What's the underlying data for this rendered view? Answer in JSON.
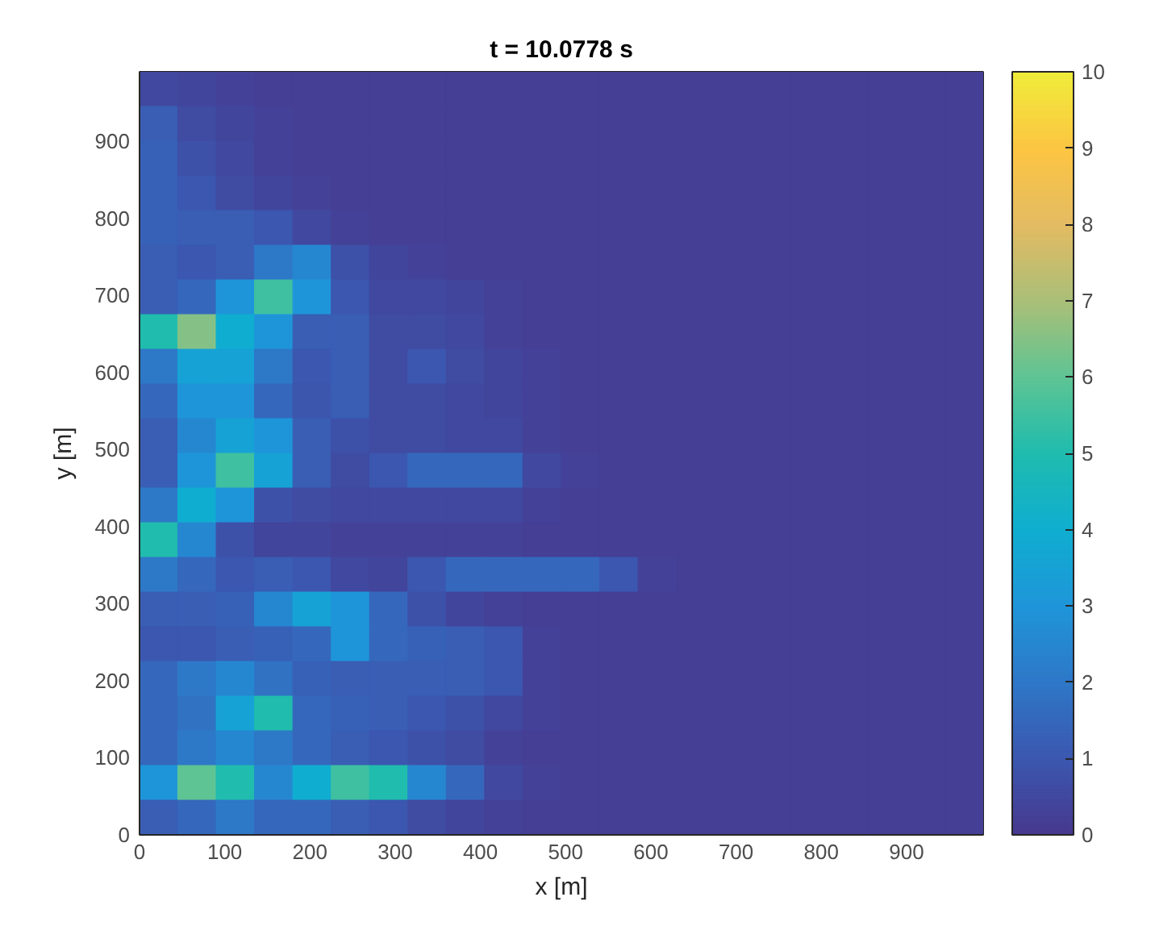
{
  "chart_data": {
    "type": "heatmap",
    "title": "t = 10.0778 s",
    "xlabel": "x [m]",
    "ylabel": "y [m]",
    "xlim": [
      0,
      990
    ],
    "ylim": [
      0,
      990
    ],
    "xticks": [
      0,
      100,
      200,
      300,
      400,
      500,
      600,
      700,
      800,
      900
    ],
    "yticks": [
      0,
      100,
      200,
      300,
      400,
      500,
      600,
      700,
      800,
      900
    ],
    "clim": [
      0,
      10
    ],
    "cticks": [
      0,
      1,
      2,
      3,
      4,
      5,
      6,
      7,
      8,
      9,
      10
    ],
    "cells": [
      [
        0.5,
        0.4,
        0.3,
        0.2,
        0.2,
        0.2,
        0.2,
        0.2,
        0.2,
        0.2,
        0.2,
        0.2,
        0.2,
        0.2,
        0.2,
        0.2,
        0.2,
        0.2,
        0.2,
        0.2,
        0.2,
        0.2
      ],
      [
        1.2,
        0.6,
        0.4,
        0.3,
        0.2,
        0.2,
        0.2,
        0.2,
        0.2,
        0.2,
        0.2,
        0.2,
        0.2,
        0.2,
        0.2,
        0.2,
        0.2,
        0.2,
        0.2,
        0.2,
        0.2,
        0.2
      ],
      [
        1.3,
        0.8,
        0.5,
        0.3,
        0.2,
        0.2,
        0.2,
        0.2,
        0.2,
        0.2,
        0.2,
        0.2,
        0.2,
        0.2,
        0.2,
        0.2,
        0.2,
        0.2,
        0.2,
        0.2,
        0.2,
        0.2
      ],
      [
        1.3,
        1,
        0.6,
        0.4,
        0.3,
        0.2,
        0.2,
        0.2,
        0.2,
        0.2,
        0.2,
        0.2,
        0.2,
        0.2,
        0.2,
        0.2,
        0.2,
        0.2,
        0.2,
        0.2,
        0.2,
        0.2
      ],
      [
        1.3,
        1.2,
        1.2,
        1,
        0.5,
        0.3,
        0.2,
        0.2,
        0.2,
        0.2,
        0.2,
        0.2,
        0.2,
        0.2,
        0.2,
        0.2,
        0.2,
        0.2,
        0.2,
        0.2,
        0.2,
        0.2
      ],
      [
        1.2,
        1,
        1.2,
        2,
        2.5,
        0.8,
        0.4,
        0.3,
        0.2,
        0.2,
        0.2,
        0.2,
        0.2,
        0.2,
        0.2,
        0.2,
        0.2,
        0.2,
        0.2,
        0.2,
        0.2,
        0.2
      ],
      [
        1.2,
        1.5,
        3,
        5.5,
        3,
        1,
        0.5,
        0.5,
        0.4,
        0.3,
        0.2,
        0.2,
        0.2,
        0.2,
        0.2,
        0.2,
        0.2,
        0.2,
        0.2,
        0.2,
        0.2,
        0.2
      ],
      [
        5,
        6.5,
        4,
        3,
        1.2,
        1.2,
        0.6,
        0.6,
        0.5,
        0.3,
        0.2,
        0.2,
        0.2,
        0.2,
        0.2,
        0.2,
        0.2,
        0.2,
        0.2,
        0.2,
        0.2,
        0.2
      ],
      [
        2,
        3.5,
        3.5,
        2,
        1,
        1.2,
        0.6,
        1,
        0.6,
        0.4,
        0.3,
        0.2,
        0.2,
        0.2,
        0.2,
        0.2,
        0.2,
        0.2,
        0.2,
        0.2,
        0.2,
        0.2
      ],
      [
        1.5,
        3,
        3,
        1.5,
        0.9,
        1.2,
        0.6,
        0.6,
        0.5,
        0.4,
        0.3,
        0.2,
        0.2,
        0.2,
        0.2,
        0.2,
        0.2,
        0.2,
        0.2,
        0.2,
        0.2,
        0.2
      ],
      [
        1.2,
        2.5,
        3.5,
        3,
        1.2,
        0.8,
        0.6,
        0.6,
        0.5,
        0.5,
        0.3,
        0.2,
        0.2,
        0.2,
        0.2,
        0.2,
        0.2,
        0.2,
        0.2,
        0.2,
        0.2,
        0.2
      ],
      [
        1.2,
        3,
        5.5,
        3.5,
        1.2,
        0.6,
        1,
        1.5,
        1.5,
        1.5,
        0.5,
        0.3,
        0.2,
        0.2,
        0.2,
        0.2,
        0.2,
        0.2,
        0.2,
        0.2,
        0.2,
        0.2
      ],
      [
        2,
        4,
        3,
        0.8,
        0.6,
        0.5,
        0.5,
        0.5,
        0.5,
        0.5,
        0.3,
        0.2,
        0.2,
        0.2,
        0.2,
        0.2,
        0.2,
        0.2,
        0.2,
        0.2,
        0.2,
        0.2
      ],
      [
        5,
        2.5,
        0.8,
        0.4,
        0.4,
        0.3,
        0.3,
        0.3,
        0.3,
        0.3,
        0.2,
        0.2,
        0.2,
        0.2,
        0.2,
        0.2,
        0.2,
        0.2,
        0.2,
        0.2,
        0.2,
        0.2
      ],
      [
        2,
        1.5,
        1,
        1.2,
        1,
        0.5,
        0.4,
        1,
        1.5,
        1.5,
        1.5,
        1.5,
        1,
        0.3,
        0.2,
        0.2,
        0.2,
        0.2,
        0.2,
        0.2,
        0.2,
        0.2
      ],
      [
        1.2,
        1.2,
        1.3,
        2.5,
        3.5,
        3,
        1.5,
        0.8,
        0.4,
        0.3,
        0.2,
        0.2,
        0.2,
        0.2,
        0.2,
        0.2,
        0.2,
        0.2,
        0.2,
        0.2,
        0.2,
        0.2
      ],
      [
        1,
        1,
        1.2,
        1.3,
        1.5,
        3,
        1.5,
        1.3,
        1.2,
        1,
        0.3,
        0.2,
        0.2,
        0.2,
        0.2,
        0.2,
        0.2,
        0.2,
        0.2,
        0.2,
        0.2,
        0.2
      ],
      [
        1.5,
        2,
        2.5,
        1.8,
        1.3,
        1.2,
        1.2,
        1.2,
        1.2,
        1,
        0.3,
        0.2,
        0.2,
        0.2,
        0.2,
        0.2,
        0.2,
        0.2,
        0.2,
        0.2,
        0.2,
        0.2
      ],
      [
        1.5,
        1.8,
        3.5,
        5,
        1.5,
        1.3,
        1.2,
        1,
        0.8,
        0.5,
        0.3,
        0.2,
        0.2,
        0.2,
        0.2,
        0.2,
        0.2,
        0.2,
        0.2,
        0.2,
        0.2,
        0.2
      ],
      [
        1.5,
        2,
        2.5,
        2,
        1.5,
        1.2,
        1,
        0.8,
        0.6,
        0.3,
        0.2,
        0.2,
        0.2,
        0.2,
        0.2,
        0.2,
        0.2,
        0.2,
        0.2,
        0.2,
        0.2,
        0.2
      ],
      [
        3,
        6,
        5,
        2.5,
        4,
        5.5,
        5,
        2.5,
        1.5,
        0.5,
        0.3,
        0.2,
        0.2,
        0.2,
        0.2,
        0.2,
        0.2,
        0.2,
        0.2,
        0.2,
        0.2,
        0.2
      ],
      [
        1.2,
        1.5,
        2,
        1.5,
        1.5,
        1.2,
        1,
        0.6,
        0.4,
        0.3,
        0.2,
        0.2,
        0.2,
        0.2,
        0.2,
        0.2,
        0.2,
        0.2,
        0.2,
        0.2,
        0.2,
        0.2
      ]
    ]
  }
}
